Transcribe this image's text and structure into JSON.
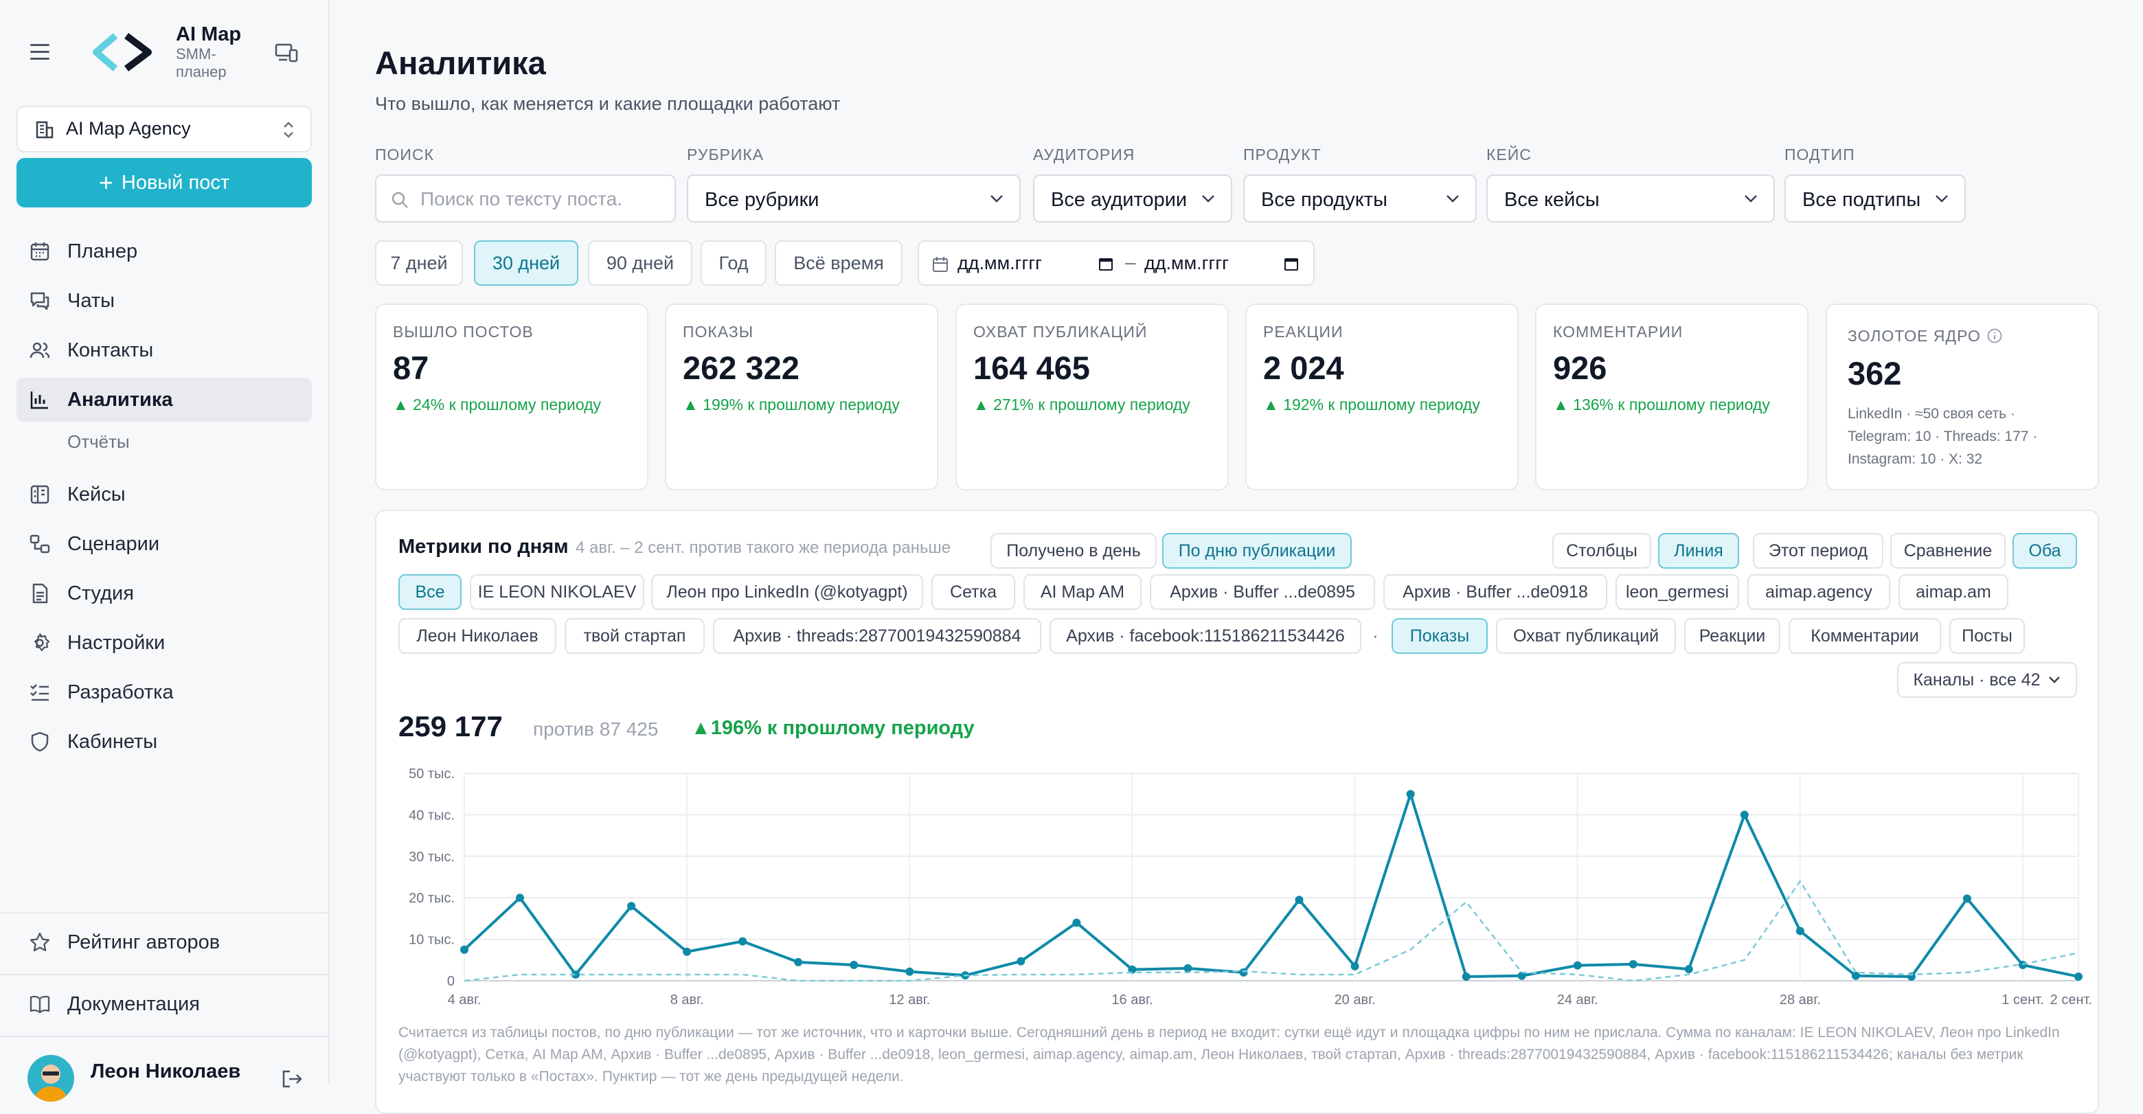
{
  "brand": {
    "title": "AI Map",
    "subtitle": "SMM-планер"
  },
  "workspace": {
    "name": "AI Map Agency"
  },
  "new_post": {
    "label": "Новый пост"
  },
  "nav": [
    {
      "label": "Планер",
      "icon": "calendar-icon"
    },
    {
      "label": "Чаты",
      "icon": "chat-icon"
    },
    {
      "label": "Контакты",
      "icon": "users-icon"
    },
    {
      "label": "Аналитика",
      "icon": "bar-chart-icon",
      "active": true
    },
    {
      "label": "Кейсы",
      "icon": "columns-icon"
    },
    {
      "label": "Сценарии",
      "icon": "flow-icon"
    },
    {
      "label": "Студия",
      "icon": "document-icon"
    },
    {
      "label": "Настройки",
      "icon": "gear-icon"
    },
    {
      "label": "Разработка",
      "icon": "list-check-icon"
    },
    {
      "label": "Кабинеты",
      "icon": "shield-icon"
    }
  ],
  "nav_sub": {
    "label": "Отчёты"
  },
  "bottom_nav": [
    {
      "label": "Рейтинг авторов",
      "icon": "star-icon"
    },
    {
      "label": "Документация",
      "icon": "book-icon"
    }
  ],
  "user": {
    "name": "Леон Николаев"
  },
  "page": {
    "title": "Аналитика",
    "subtitle": "Что вышло, как меняется и какие площадки работают"
  },
  "filters": {
    "search": {
      "label": "ПОИСК",
      "placeholder": "Поиск по тексту поста."
    },
    "rubric": {
      "label": "РУБРИКА",
      "value": "Все рубрики"
    },
    "audience": {
      "label": "АУДИТОРИЯ",
      "value": "Все аудитории"
    },
    "product": {
      "label": "ПРОДУКТ",
      "value": "Все продукты"
    },
    "case": {
      "label": "КЕЙС",
      "value": "Все кейсы"
    },
    "subtype": {
      "label": "ПОДТИП",
      "value": "Все подтипы"
    }
  },
  "ranges": [
    {
      "label": "7 дней"
    },
    {
      "label": "30 дней",
      "active": true
    },
    {
      "label": "90 дней"
    },
    {
      "label": "Год"
    },
    {
      "label": "Всё время"
    }
  ],
  "dates": {
    "from": "дд.мм.гггг",
    "to": "дд.мм.гггг",
    "sep": "–"
  },
  "kpis": [
    {
      "label": "ВЫШЛО ПОСТОВ",
      "value": "87",
      "delta": "▲ 24% к прошлому периоду"
    },
    {
      "label": "ПОКАЗЫ",
      "value": "262 322",
      "delta": "▲ 199% к прошлому периоду"
    },
    {
      "label": "ОХВАТ ПУБЛИКАЦИЙ",
      "value": "164 465",
      "delta": "▲ 271% к прошлому периоду"
    },
    {
      "label": "РЕАКЦИИ",
      "value": "2 024",
      "delta": "▲ 192% к прошлому периоду"
    },
    {
      "label": "КОММЕНТАРИИ",
      "value": "926",
      "delta": "▲ 136% к прошлому периоду"
    }
  ],
  "golden": {
    "label": "ЗОЛОТОЕ ЯДРО",
    "value": "362",
    "lines": [
      "LinkedIn · ≈50 своя сеть ·",
      "Telegram: 10 · Threads: 177 ·",
      "Instagram: 10 · X: 32"
    ]
  },
  "metrics": {
    "title": "Метрики по дням",
    "subtitle": "4 авг. – 2 сент. против такого же периода раньше",
    "mode_tabs": [
      {
        "label": "Получено в день"
      },
      {
        "label": "По дню публикации",
        "active": true
      }
    ],
    "view_tabs": [
      {
        "label": "Столбцы"
      },
      {
        "label": "Линия",
        "active": true
      }
    ],
    "compare_tabs": [
      {
        "label": "Этот период"
      },
      {
        "label": "Сравнение"
      },
      {
        "label": "Оба",
        "active": true
      }
    ],
    "channels": [
      {
        "label": "Все",
        "active": true
      },
      {
        "label": "IE LEON NIKOLAEV"
      },
      {
        "label": "Леон про LinkedIn (@kotyagpt)"
      },
      {
        "label": "Сетка"
      },
      {
        "label": "AI Map AM"
      },
      {
        "label": "Архив · Buffer ...de0895"
      },
      {
        "label": "Архив · Buffer ...de0918"
      },
      {
        "label": "leon_germesi"
      },
      {
        "label": "aimap.agency"
      },
      {
        "label": "aimap.am"
      },
      {
        "label": "Леон Николаев"
      },
      {
        "label": "твой стартап"
      },
      {
        "label": "Архив · threads:28770019432590884"
      },
      {
        "label": "Архив · facebook:115186211534426"
      }
    ],
    "separator": "·",
    "metric_tabs": [
      {
        "label": "Показы",
        "active": true
      },
      {
        "label": "Охват публикаций"
      },
      {
        "label": "Реакции"
      },
      {
        "label": "Комментарии"
      },
      {
        "label": "Посты"
      }
    ],
    "channels_dropdown": "Каналы · все 42",
    "total": "259 177",
    "vs": "против 87 425",
    "delta": "▲196% к прошлому периоду",
    "note": "Считается из таблицы постов, по дню публикации — тот же источник, что и карточки выше. Сегодняшний день в период не входит: сутки ещё идут и площадка цифры по ним не прислала. Сумма по каналам: IE LEON NIKOLAEV, Леон про LinkedIn (@kotyagpt), Сетка, AI Map AM, Архив · Buffer ...de0895, Архив · Buffer ...de0918, leon_germesi, aimap.agency, aimap.am, Леон Николаев, твой стартап, Архив · threads:28770019432590884, Архив · facebook:115186211534426; каналы без метрик участвуют только в «Постах». Пунктир — тот же день предыдущей недели."
  },
  "colors": {
    "accent": "#22b3cc",
    "line": "#0e8aa8",
    "compare": "#7cc9d8",
    "positive": "#16a34a"
  },
  "chart_data": {
    "type": "line",
    "x": [
      "4 авг.",
      "5 авг.",
      "6 авг.",
      "7 авг.",
      "8 авг.",
      "9 авг.",
      "10 авг.",
      "11 авг.",
      "12 авг.",
      "13 авг.",
      "14 авг.",
      "15 авг.",
      "16 авг.",
      "17 авг.",
      "18 авг.",
      "19 авг.",
      "20 авг.",
      "21 авг.",
      "22 авг.",
      "23 авг.",
      "24 авг.",
      "25 авг.",
      "26 авг.",
      "27 авг.",
      "28 авг.",
      "29 авг.",
      "30 авг.",
      "31 авг.",
      "1 сент.",
      "2 сент."
    ],
    "xticks": [
      "4 авг.",
      "8 авг.",
      "12 авг.",
      "16 авг.",
      "20 авг.",
      "24 авг.",
      "28 авг.",
      "1 сент.",
      "2 сент."
    ],
    "yticks": [
      "0",
      "10 тыс.",
      "20 тыс.",
      "30 тыс.",
      "40 тыс.",
      "50 тыс."
    ],
    "ylim": [
      0,
      50000
    ],
    "grid": true,
    "series": [
      {
        "style": "solid",
        "values": [
          7500,
          20000,
          1500,
          18000,
          7000,
          9500,
          4500,
          3800,
          2200,
          1300,
          4700,
          14000,
          2700,
          3000,
          2000,
          19500,
          3500,
          45000,
          1000,
          1200,
          3700,
          4000,
          2800,
          40000,
          12000,
          1200,
          1000,
          19800,
          3800,
          1000
        ]
      },
      {
        "style": "dashed",
        "values": [
          0,
          1500,
          1500,
          1500,
          1500,
          1500,
          0,
          0,
          0,
          1300,
          1500,
          1500,
          2000,
          2000,
          2300,
          1500,
          1500,
          7500,
          19000,
          2000,
          1500,
          0,
          1500,
          5000,
          24000,
          2000,
          1500,
          2000,
          4000,
          6700
        ]
      }
    ]
  }
}
